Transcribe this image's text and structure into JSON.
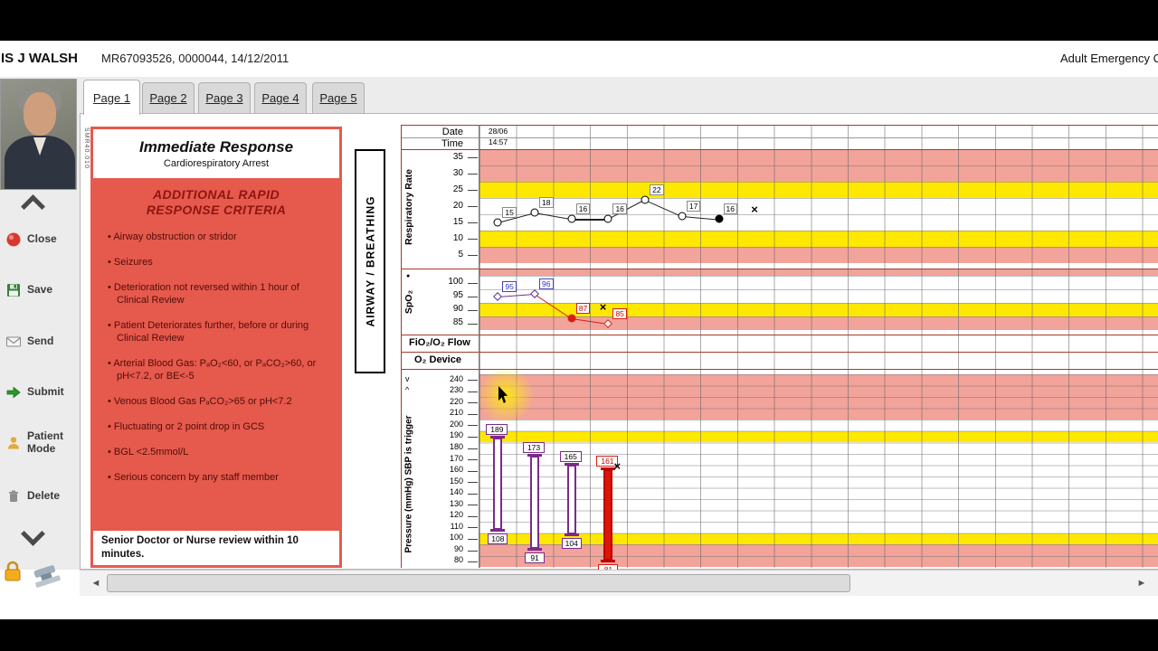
{
  "header": {
    "patient_name": "IS J WALSH",
    "patient_details": "MR67093526, 0000044, 14/12/2011",
    "app_title": "Adult Emergency C"
  },
  "tabs": [
    "Page 1",
    "Page 2",
    "Page 3",
    "Page 4",
    "Page 5"
  ],
  "sidebar": {
    "buttons": [
      {
        "label": "Close",
        "icon": "close-icon"
      },
      {
        "label": "Save",
        "icon": "save-icon"
      },
      {
        "label": "Send",
        "icon": "send-icon"
      },
      {
        "label": "Submit",
        "icon": "submit-icon"
      },
      {
        "label": "Patient Mode",
        "icon": "patient-mode-icon"
      },
      {
        "label": "Delete",
        "icon": "delete-icon"
      }
    ]
  },
  "criteria_panel": {
    "form_code": "SMR40.010",
    "title": "Immediate Response",
    "subtitle": "Cardiorespiratory Arrest",
    "section_heading": "ADDITIONAL RAPID RESPONSE CRITERIA",
    "items": [
      "Airway obstruction or stridor",
      "Seizures",
      "Deterioration not reversed within 1 hour of Clinical Review",
      "Patient Deteriorates further, before or during Clinical Review",
      "Arterial Blood Gas: PₐO₂<60, or PₐCO₂>60, or pH<7.2, or BE<-5",
      "Venous Blood Gas PₐCO₂>65 or pH<7.2",
      "Fluctuating or 2 point drop in GCS",
      "BGL <2.5mmol/L",
      "Serious concern by any staff member"
    ],
    "footer": "Senior Doctor or Nurse review within 10 minutes."
  },
  "chart": {
    "airway_label": "AIRWAY / BREATHING",
    "date_label": "Date",
    "time_label": "Time",
    "date_value": "28/06",
    "time_value": "14:57",
    "rr_label": "Respiratory Rate",
    "spo2_label": "SpO₂",
    "fio2_label": "FiO₂/O₂ Flow",
    "o2_device_label": "O₂ Device",
    "bp_label": "Pressure (mmHg) SBP is trigger",
    "spo2_legend_dot": "●",
    "bp_mark_systolic": "v",
    "bp_mark_diastolic": "^"
  },
  "chart_data": [
    {
      "type": "line",
      "name": "respiratory-rate",
      "ylabel": "Respiratory Rate",
      "yticks": [
        35,
        30,
        25,
        20,
        15,
        10,
        5
      ],
      "row_colors": [
        "red",
        "red",
        "yellow",
        "white",
        "white",
        "yellow",
        "red"
      ],
      "columns": [
        1,
        2,
        3,
        4,
        5,
        6,
        7
      ],
      "values": [
        15,
        18,
        16,
        16,
        22,
        17,
        16
      ],
      "last_point_filled": true,
      "refused_marker": {
        "column": 8,
        "y_value": 19,
        "symbol": "×"
      }
    },
    {
      "type": "line",
      "name": "spo2",
      "ylabel": "SpO₂",
      "yticks": [
        100,
        95,
        90,
        85
      ],
      "row_colors": [
        "white",
        "white",
        "yellow",
        "red"
      ],
      "top_band": "red",
      "columns": [
        1,
        2,
        3,
        4
      ],
      "values": [
        95,
        96,
        87,
        85
      ],
      "alert_from_index": 2,
      "filled_point_index": 2,
      "x_marker_after_index": 2,
      "x_marker_symbol": "×"
    },
    {
      "type": "range-bar",
      "name": "blood-pressure",
      "ylabel": "Pressure (mmHg) SBP is trigger",
      "yticks": [
        240,
        230,
        220,
        210,
        200,
        190,
        180,
        170,
        160,
        150,
        140,
        130,
        120,
        110,
        100,
        90,
        80
      ],
      "row_colors": [
        "red",
        "red",
        "red",
        "red",
        "white",
        "yellow",
        "white",
        "white",
        "white",
        "white",
        "white",
        "white",
        "white",
        "white",
        "yellow",
        "red",
        "red"
      ],
      "readings": [
        {
          "column": 1,
          "systolic": 189,
          "diastolic": 108,
          "alert": false
        },
        {
          "column": 2,
          "systolic": 173,
          "diastolic": 91,
          "alert": false
        },
        {
          "column": 3,
          "systolic": 165,
          "diastolic": 104,
          "alert": false
        },
        {
          "column": 4,
          "systolic": 161,
          "diastolic": 81,
          "alert": true,
          "marker": "×"
        }
      ]
    }
  ],
  "colors": {
    "band_red": "#f2a39a",
    "band_yellow": "#ffe800",
    "panel_red": "#e6594d",
    "alert_red": "#d81e10",
    "series_purple": "#7b2a8c",
    "separator_red": "#a33b2a"
  }
}
